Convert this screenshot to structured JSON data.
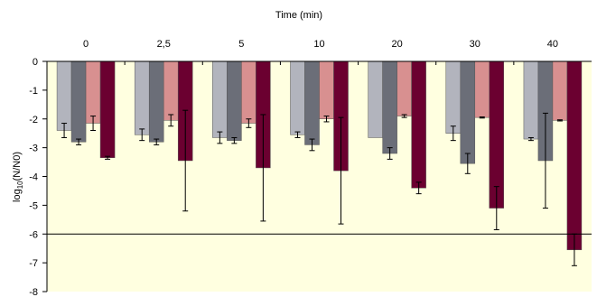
{
  "chart_data": {
    "type": "bar",
    "title": "Time (min)",
    "xlabel": "Time (min)",
    "ylabel": "log(N/N0)",
    "ylabel_parts": {
      "prefix": "log",
      "subscript": "10",
      "suffix": "(N/N0)"
    },
    "ylim": [
      -8,
      0
    ],
    "yticks": [
      0,
      -1,
      -2,
      -3,
      -4,
      -5,
      -6,
      -7,
      -8
    ],
    "reference_line": -6,
    "categories": [
      "0",
      "2,5",
      "5",
      "10",
      "20",
      "30",
      "40"
    ],
    "series": [
      {
        "values": [
          -2.4,
          -2.55,
          -2.65,
          -2.55,
          -2.65,
          -2.5,
          -2.7
        ],
        "errors": [
          0.25,
          0.2,
          0.2,
          0.1,
          0.0,
          0.25,
          0.05
        ],
        "color": "#b2b4bd"
      },
      {
        "values": [
          -2.8,
          -2.8,
          -2.75,
          -2.9,
          -3.2,
          -3.55,
          -3.45
        ],
        "errors": [
          0.1,
          0.1,
          0.1,
          0.2,
          0.2,
          0.35,
          1.65
        ],
        "color": "#6b6e78"
      },
      {
        "values": [
          -2.15,
          -2.05,
          -2.15,
          -2.0,
          -1.9,
          -1.95,
          -2.05
        ],
        "errors": [
          0.25,
          0.2,
          0.15,
          0.1,
          0.05,
          0.02,
          0.02
        ],
        "color": "#d89090"
      },
      {
        "values": [
          -3.35,
          -3.45,
          -3.7,
          -3.8,
          -4.4,
          -5.1,
          -6.55
        ],
        "errors": [
          0.05,
          1.75,
          1.85,
          1.85,
          0.2,
          0.75,
          0.55
        ],
        "color": "#6b0030"
      }
    ],
    "grid": false,
    "legend": "none"
  }
}
